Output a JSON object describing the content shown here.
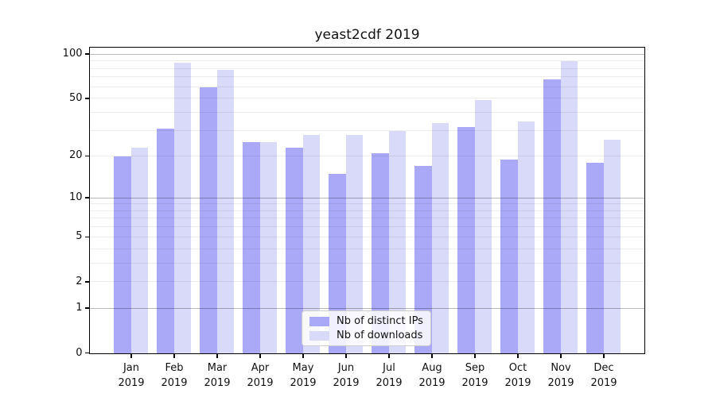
{
  "title": "yeast2cdf 2019",
  "chart_data": {
    "type": "bar",
    "title": "yeast2cdf 2019",
    "categories": [
      "Jan",
      "Feb",
      "Mar",
      "Apr",
      "May",
      "Jun",
      "Jul",
      "Aug",
      "Sep",
      "Oct",
      "Nov",
      "Dec"
    ],
    "year": "2019",
    "series": [
      {
        "name": "Nb of distinct IPs",
        "color": "#a9a9f7",
        "values": [
          20,
          31,
          60,
          25,
          23,
          15,
          21,
          17,
          32,
          19,
          68,
          18
        ]
      },
      {
        "name": "Nb of downloads",
        "color": "#d9d9f9",
        "values": [
          23,
          88,
          79,
          25,
          28,
          28,
          30,
          34,
          49,
          35,
          90,
          26
        ]
      }
    ],
    "xlabel": "",
    "ylabel": "",
    "y_scale": "log1p",
    "ylim": [
      0,
      110
    ],
    "y_ticks": [
      0,
      1,
      2,
      5,
      10,
      20,
      50,
      100
    ],
    "y_major_gridlines": [
      1,
      10,
      100
    ],
    "y_minor_gridlines": [
      2,
      3,
      4,
      5,
      6,
      7,
      8,
      9,
      20,
      30,
      40,
      50,
      60,
      70,
      80,
      90
    ],
    "grid": true,
    "legend_position": "lower center"
  },
  "legend": {
    "items": [
      {
        "label": "Nb of distinct IPs",
        "color": "#a9a9f7"
      },
      {
        "label": "Nb of downloads",
        "color": "#d9d9f9"
      }
    ]
  }
}
